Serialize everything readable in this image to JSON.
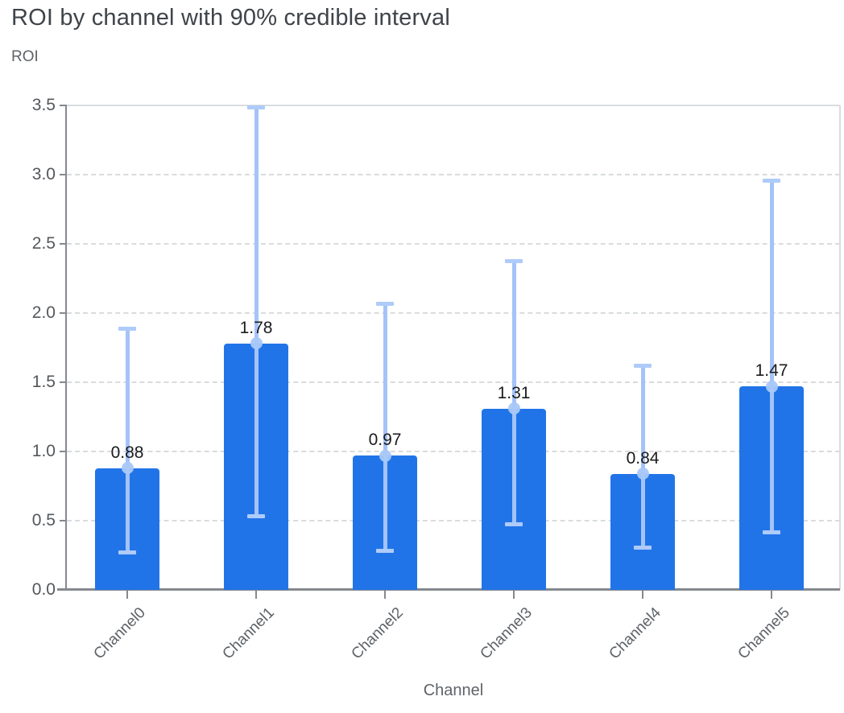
{
  "header": {
    "title": "ROI by channel with 90% credible interval"
  },
  "chart_data": {
    "type": "bar",
    "title": "ROI by channel with 90% credible interval",
    "xlabel": "Channel",
    "ylabel": "ROI",
    "categories": [
      "Channel0",
      "Channel1",
      "Channel2",
      "Channel3",
      "Channel4",
      "Channel5"
    ],
    "values": [
      0.88,
      1.78,
      0.97,
      1.31,
      0.84,
      1.47
    ],
    "value_labels": [
      "0.88",
      "1.78",
      "0.97",
      "1.31",
      "0.84",
      "1.47"
    ],
    "error_low": [
      0.27,
      0.53,
      0.28,
      0.47,
      0.3,
      0.41
    ],
    "error_high": [
      1.89,
      3.49,
      2.07,
      2.38,
      1.62,
      2.96
    ],
    "error_bar_meaning": "90% credible interval",
    "ylim": [
      0,
      3.5
    ],
    "yticks": [
      0,
      0.5,
      1,
      1.5,
      2,
      2.5,
      3,
      3.5
    ],
    "ytick_labels": [
      "0.0",
      "0.5",
      "1.0",
      "1.5",
      "2.0",
      "2.5",
      "3.0",
      "3.5"
    ],
    "grid": true,
    "grid_style": "dashed",
    "legend": false
  },
  "colors": {
    "bar": "#2174e8",
    "error_bar": "#a4c3f8",
    "error_cap": "#aecbfa",
    "error_marker": "#a9c8f9",
    "grid": "#d9dcdf",
    "axis": "#85898e",
    "tick_label": "#54585c",
    "axis_title": "#5f6368",
    "chart_title": "#3f4449",
    "value_label": "#1a1b1c"
  }
}
